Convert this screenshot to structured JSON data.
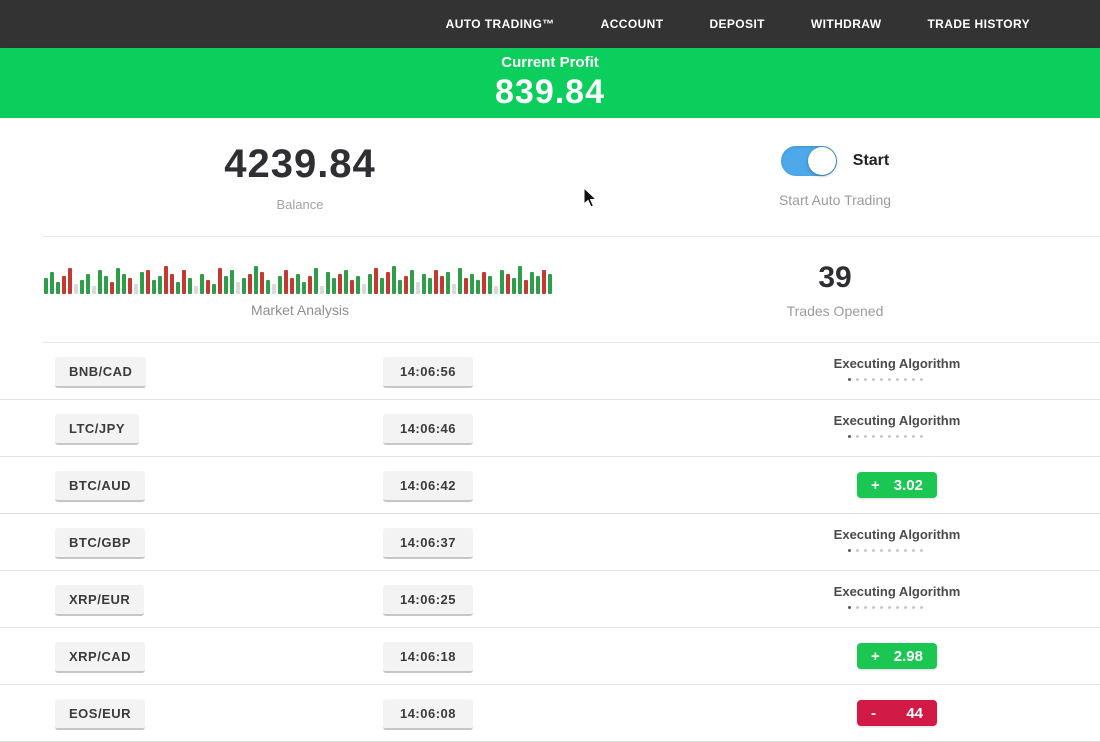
{
  "nav": {
    "items": [
      {
        "label": "AUTO TRADING™"
      },
      {
        "label": "ACCOUNT"
      },
      {
        "label": "DEPOSIT"
      },
      {
        "label": "WITHDRAW"
      },
      {
        "label": "TRADE HISTORY"
      }
    ]
  },
  "banner": {
    "label": "Current Profit",
    "value": "839.84"
  },
  "account": {
    "balance": "4239.84",
    "balance_label": "Balance",
    "toggle_label": "Start",
    "toggle_caption": "Start Auto Trading",
    "toggle_on": true
  },
  "market": {
    "label": "Market Analysis",
    "colors": {
      "green": "#2f9e49",
      "red": "#c43a31",
      "gray": "#d9d9d9"
    },
    "bars": [
      "g16",
      "g22",
      "g12",
      "r18",
      "r26",
      "l10",
      "g14",
      "g20",
      "l8",
      "g24",
      "g18",
      "r12",
      "g26",
      "g20",
      "r16",
      "l10",
      "g22",
      "r24",
      "g14",
      "g18",
      "r28",
      "r20",
      "g12",
      "r24",
      "g16",
      "l8",
      "g20",
      "r14",
      "g10",
      "r26",
      "g18",
      "g24",
      "l12",
      "g16",
      "r20",
      "g28",
      "r22",
      "g14",
      "l10",
      "g18",
      "r24",
      "r16",
      "g20",
      "g12",
      "r18",
      "g26",
      "l8",
      "g22",
      "g16",
      "r20",
      "g24",
      "r14",
      "g18",
      "l10",
      "g20",
      "r26",
      "g16",
      "r22",
      "g28",
      "g14",
      "r18",
      "g24",
      "l12",
      "g20",
      "g16",
      "r24",
      "r18",
      "g22",
      "l10",
      "g26",
      "r16",
      "g20",
      "g14",
      "r22",
      "g18",
      "l8",
      "g24",
      "r20",
      "g16",
      "g28",
      "r14",
      "g22",
      "g18",
      "r24",
      "g20"
    ]
  },
  "trades": {
    "count": "39",
    "count_label": "Trades Opened",
    "executing_label": "Executing Algorithm",
    "rows": [
      {
        "pair": "BNB/CAD",
        "time": "14:06:56",
        "status": "executing"
      },
      {
        "pair": "LTC/JPY",
        "time": "14:06:46",
        "status": "executing"
      },
      {
        "pair": "BTC/AUD",
        "time": "14:06:42",
        "status": "profit",
        "sign": "+",
        "amount": "3.02"
      },
      {
        "pair": "BTC/GBP",
        "time": "14:06:37",
        "status": "executing"
      },
      {
        "pair": "XRP/EUR",
        "time": "14:06:25",
        "status": "executing"
      },
      {
        "pair": "XRP/CAD",
        "time": "14:06:18",
        "status": "profit",
        "sign": "+",
        "amount": "2.98"
      },
      {
        "pair": "EOS/EUR",
        "time": "14:06:08",
        "status": "loss",
        "sign": "-",
        "amount": "44"
      }
    ]
  },
  "theme": {
    "header_bg": "#333333",
    "banner_green": "#0bce5c",
    "badge_green": "#1bc653",
    "badge_red": "#d11a46",
    "toggle_blue": "#4da9e9"
  }
}
